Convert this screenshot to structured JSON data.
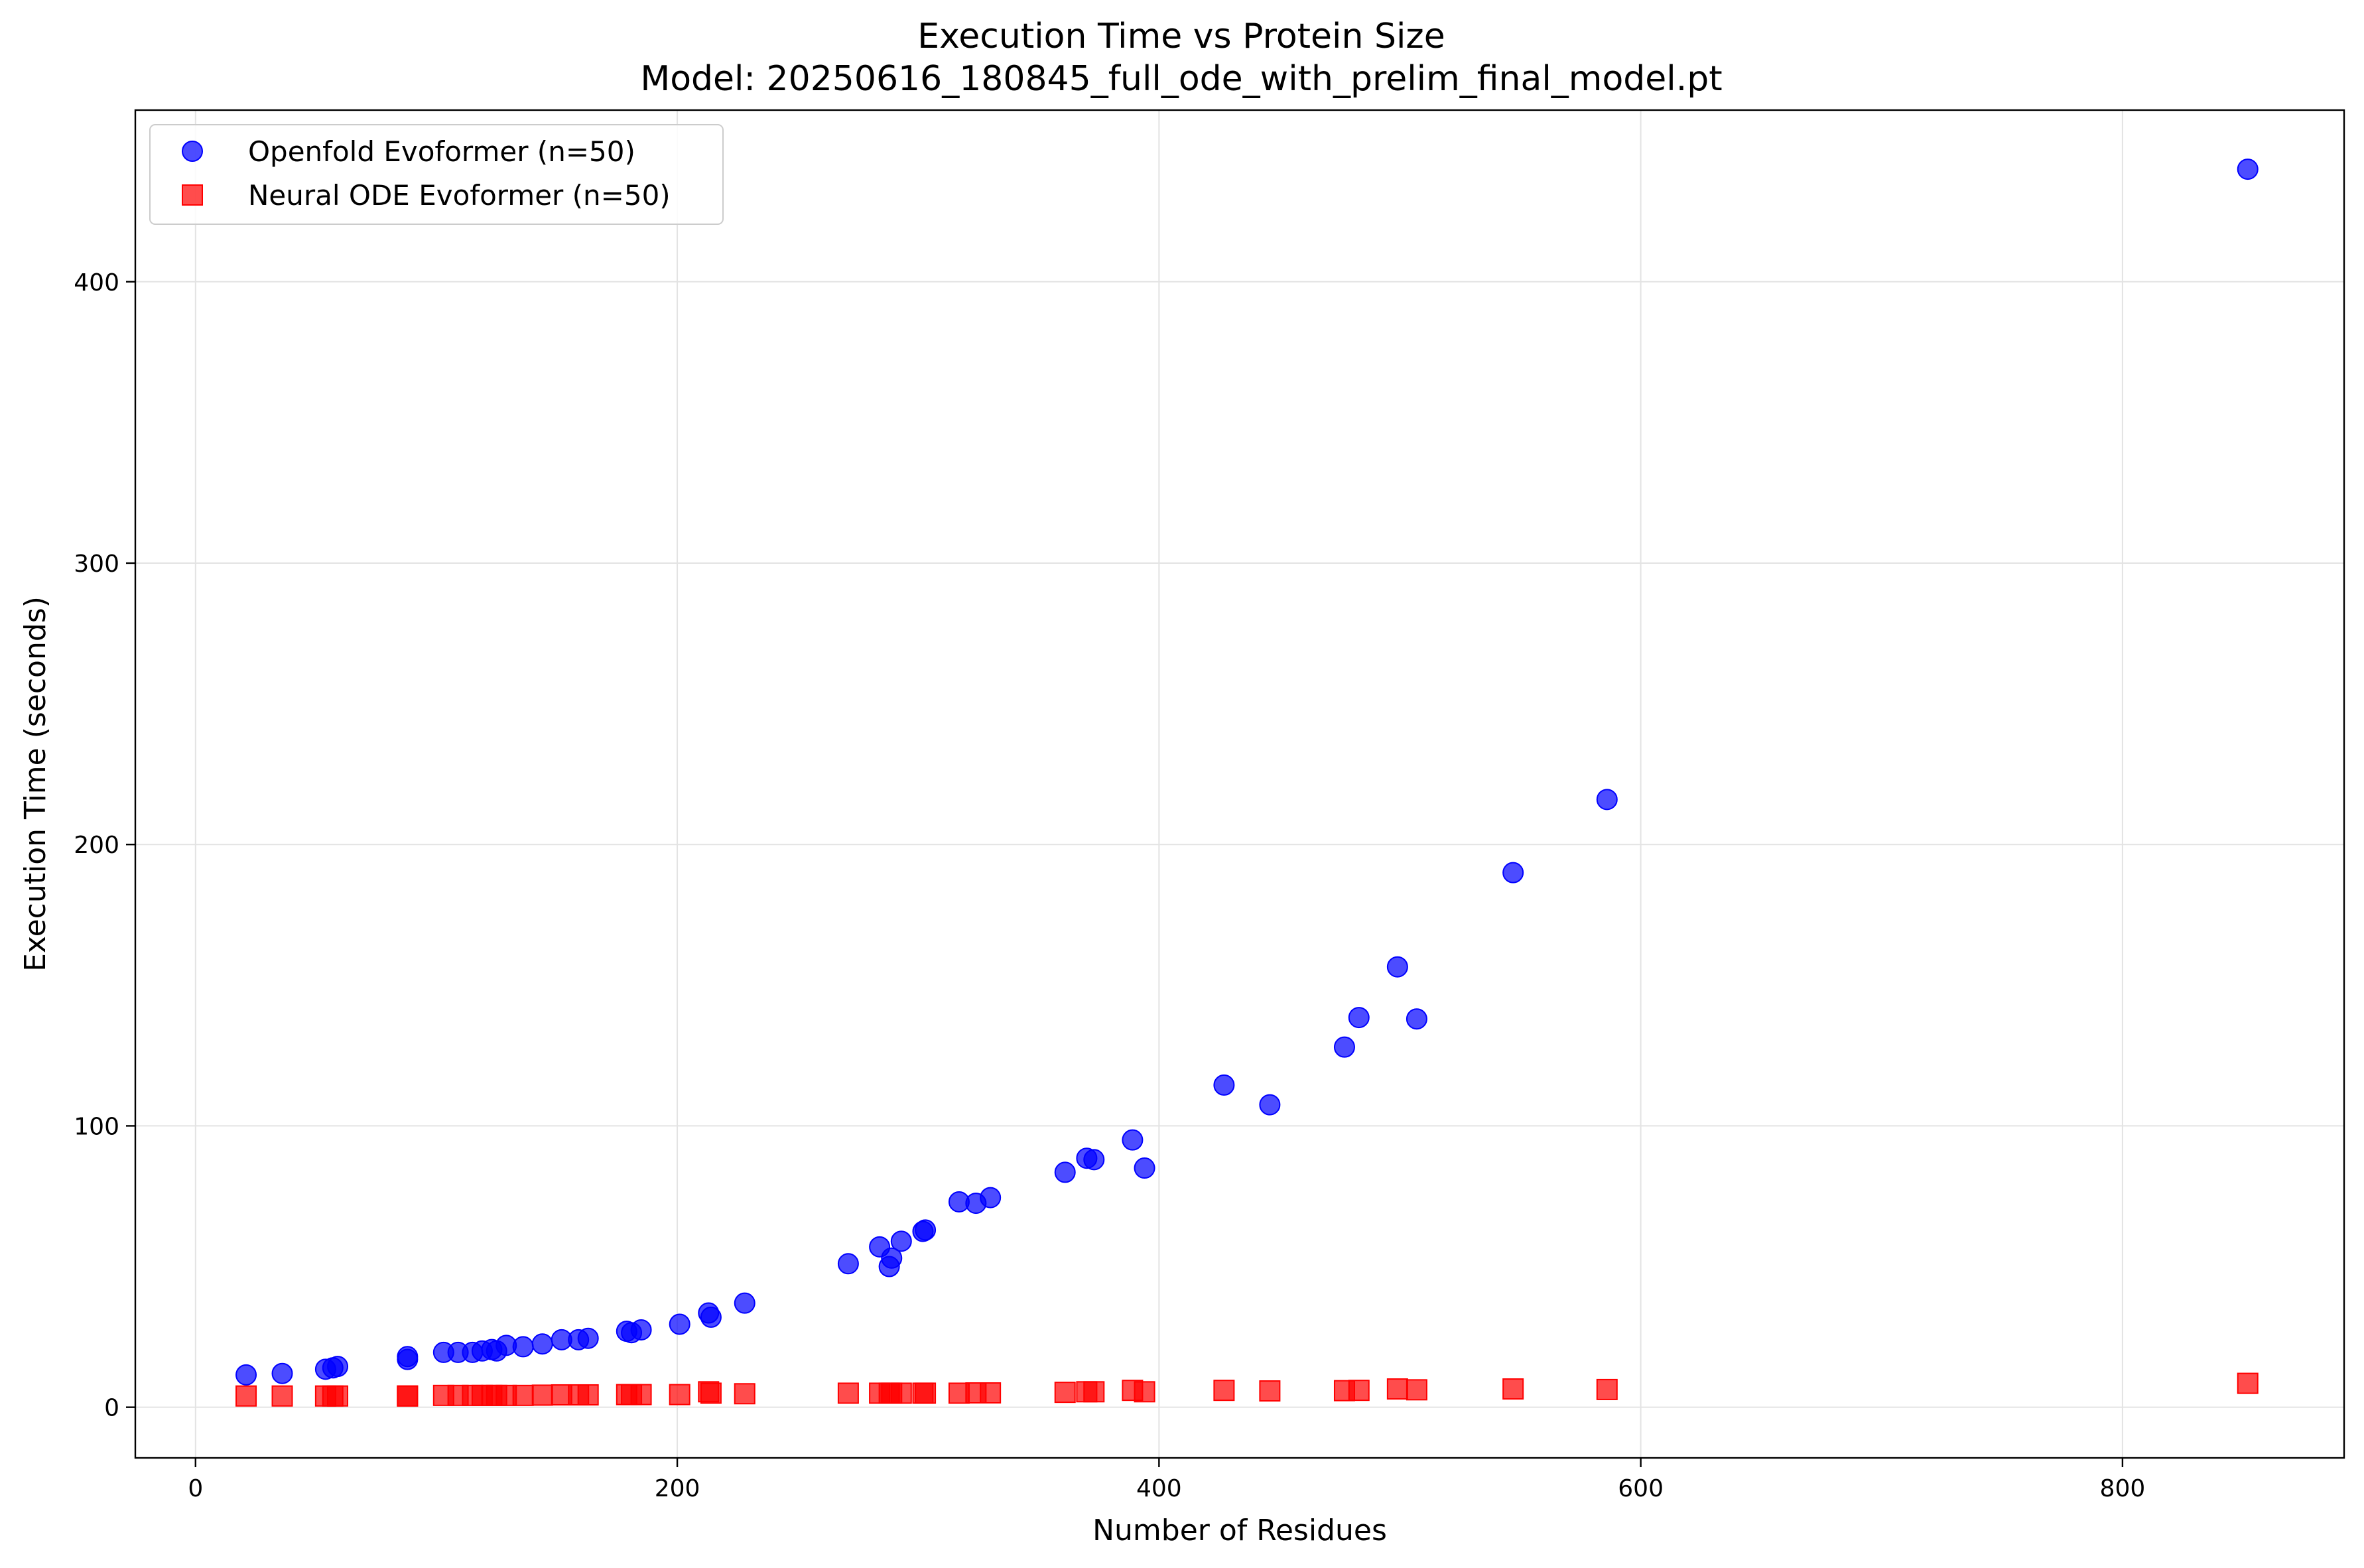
{
  "chart_data": {
    "type": "scatter",
    "title": "Execution Time vs Protein Size",
    "subtitle": "Model: 20250616_180845_full_ode_with_prelim_final_model.pt",
    "xlabel": "Number of Residues",
    "ylabel": "Execution Time (seconds)",
    "xlim": [
      -25,
      892
    ],
    "ylim": [
      -18,
      461
    ],
    "xticks": [
      0,
      200,
      400,
      600,
      800
    ],
    "yticks": [
      0,
      100,
      200,
      300,
      400
    ],
    "xtick_labels": [
      "0",
      "200",
      "400",
      "600",
      "800"
    ],
    "ytick_labels": [
      "0",
      "100",
      "200",
      "300",
      "400"
    ],
    "grid": true,
    "legend_position": "top-left",
    "series": [
      {
        "name": "Openfold Evoformer (n=50)",
        "marker": "circle",
        "color": "#0000ff",
        "points": [
          [
            21,
            11.5
          ],
          [
            36,
            12
          ],
          [
            54,
            13.5
          ],
          [
            57,
            14
          ],
          [
            59,
            14.5
          ],
          [
            88,
            17
          ],
          [
            88,
            18
          ],
          [
            103,
            19.5
          ],
          [
            109,
            19.5
          ],
          [
            115,
            19.5
          ],
          [
            119,
            20
          ],
          [
            123,
            20.5
          ],
          [
            125,
            20
          ],
          [
            129,
            22
          ],
          [
            136,
            21.5
          ],
          [
            144,
            22.5
          ],
          [
            152,
            24
          ],
          [
            159,
            24
          ],
          [
            163,
            24.5
          ],
          [
            179,
            27
          ],
          [
            181,
            26.5
          ],
          [
            185,
            27.5
          ],
          [
            201,
            29.5
          ],
          [
            213,
            33.5
          ],
          [
            214,
            32
          ],
          [
            228,
            37
          ],
          [
            271,
            51
          ],
          [
            284,
            57
          ],
          [
            288,
            50
          ],
          [
            289,
            53
          ],
          [
            293,
            59
          ],
          [
            302,
            62.5
          ],
          [
            303,
            63
          ],
          [
            317,
            73
          ],
          [
            324,
            72.5
          ],
          [
            330,
            74.5
          ],
          [
            361,
            83.5
          ],
          [
            370,
            88.5
          ],
          [
            373,
            88
          ],
          [
            389,
            95
          ],
          [
            394,
            85
          ],
          [
            427,
            114.5
          ],
          [
            446,
            107.5
          ],
          [
            477,
            128
          ],
          [
            483,
            138.5
          ],
          [
            499,
            156.5
          ],
          [
            507,
            138
          ],
          [
            547,
            190
          ],
          [
            586,
            216
          ],
          [
            852,
            440
          ]
        ]
      },
      {
        "name": "Neural ODE Evoformer (n=50)",
        "marker": "square",
        "color": "#ff0000",
        "points": [
          [
            21,
            4
          ],
          [
            36,
            4
          ],
          [
            54,
            4
          ],
          [
            57,
            4
          ],
          [
            59,
            4
          ],
          [
            88,
            4
          ],
          [
            88,
            4
          ],
          [
            103,
            4.2
          ],
          [
            109,
            4.2
          ],
          [
            115,
            4.2
          ],
          [
            119,
            4.2
          ],
          [
            123,
            4.2
          ],
          [
            125,
            4.2
          ],
          [
            129,
            4.2
          ],
          [
            136,
            4.2
          ],
          [
            144,
            4.3
          ],
          [
            152,
            4.4
          ],
          [
            159,
            4.4
          ],
          [
            163,
            4.4
          ],
          [
            179,
            4.5
          ],
          [
            181,
            4.5
          ],
          [
            185,
            4.5
          ],
          [
            201,
            4.5
          ],
          [
            213,
            5.5
          ],
          [
            214,
            5
          ],
          [
            228,
            4.8
          ],
          [
            271,
            5
          ],
          [
            284,
            5
          ],
          [
            288,
            5
          ],
          [
            289,
            5
          ],
          [
            293,
            5
          ],
          [
            302,
            5
          ],
          [
            303,
            5
          ],
          [
            317,
            5
          ],
          [
            324,
            5.1
          ],
          [
            330,
            5.1
          ],
          [
            361,
            5.3
          ],
          [
            370,
            5.5
          ],
          [
            373,
            5.5
          ],
          [
            389,
            6
          ],
          [
            394,
            5.5
          ],
          [
            427,
            6
          ],
          [
            446,
            5.8
          ],
          [
            477,
            5.9
          ],
          [
            483,
            6
          ],
          [
            499,
            6.5
          ],
          [
            507,
            6.2
          ],
          [
            547,
            6.5
          ],
          [
            586,
            6.3
          ],
          [
            852,
            8.5
          ]
        ]
      }
    ]
  }
}
